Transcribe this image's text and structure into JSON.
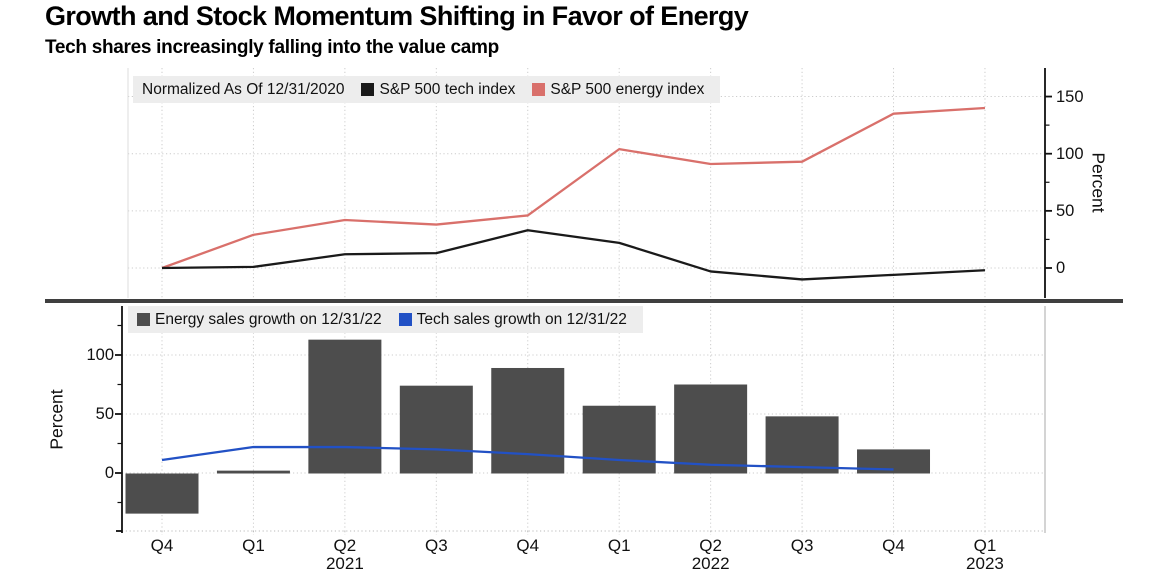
{
  "header": {
    "title": "Growth and Stock Momentum Shifting in Favor of Energy",
    "subtitle": "Tech shares increasingly falling into the value camp"
  },
  "colors": {
    "tech_index_line": "#1a1a1a",
    "energy_index_line": "#d9706b",
    "energy_sales_bars": "#4d4d4d",
    "tech_sales_line": "#2251c5",
    "legend_background": "#ededed",
    "gridline": "#cccccc",
    "separator": "#3f3f3f"
  },
  "x_axis": {
    "quarter_labels": [
      "Q4",
      "Q1",
      "Q2",
      "Q3",
      "Q4",
      "Q1",
      "Q2",
      "Q3",
      "Q4",
      "Q1"
    ],
    "year_labels": [
      {
        "index": 2,
        "label": "2021"
      },
      {
        "index": 6,
        "label": "2022"
      },
      {
        "index": 9,
        "label": "2023"
      }
    ]
  },
  "chart_data": [
    {
      "id": "index-momentum",
      "type": "line",
      "note": "Normalized As Of 12/31/2020",
      "categories": [
        "Q4 2020",
        "Q1 2021",
        "Q2 2021",
        "Q3 2021",
        "Q4 2021",
        "Q1 2022",
        "Q2 2022",
        "Q3 2022",
        "Q4 2022",
        "Q1 2023"
      ],
      "series": [
        {
          "name": "S&P 500 tech index",
          "color": "#1a1a1a",
          "values": [
            0,
            1,
            12,
            13,
            33,
            22,
            -3,
            -10,
            -6,
            -2
          ]
        },
        {
          "name": "S&P 500 energy index",
          "color": "#d9706b",
          "values": [
            0,
            29,
            42,
            38,
            46,
            104,
            91,
            93,
            135,
            140
          ]
        }
      ],
      "ylabel": "Percent",
      "y_ticks": [
        0,
        50,
        100,
        150
      ],
      "y_minor_ticks": [
        25,
        75,
        125
      ],
      "ylim": [
        -26,
        175
      ],
      "y_axis_side": "right",
      "grid": true,
      "legend_position": "top-left"
    },
    {
      "id": "sales-growth",
      "type": "bar+line",
      "categories": [
        "Q4 2020",
        "Q1 2021",
        "Q2 2021",
        "Q3 2021",
        "Q4 2021",
        "Q1 2022",
        "Q2 2022",
        "Q3 2022",
        "Q4 2022",
        "Q1 2023"
      ],
      "series": [
        {
          "name": "Energy sales growth on 12/31/22",
          "type": "bar",
          "color": "#4d4d4d",
          "values": [
            -34,
            2,
            113,
            74,
            89,
            57,
            75,
            48,
            20,
            null
          ]
        },
        {
          "name": "Tech sales growth on 12/31/22",
          "type": "line",
          "color": "#2251c5",
          "values": [
            11,
            22,
            22,
            20,
            16,
            11,
            7,
            5,
            3,
            null
          ]
        }
      ],
      "ylabel": "Percent",
      "y_ticks": [
        0,
        50,
        100
      ],
      "y_minor_ticks": [
        -25,
        25,
        75,
        125
      ],
      "ylim": [
        -49,
        142
      ],
      "y_axis_side": "left",
      "grid": true,
      "legend_position": "top-left"
    }
  ]
}
